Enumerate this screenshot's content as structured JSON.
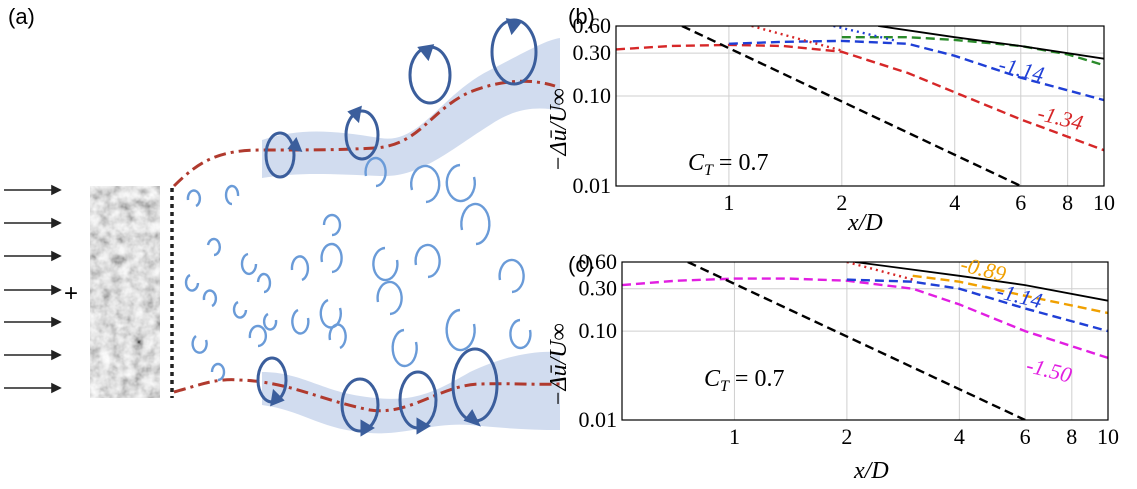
{
  "schematic": {
    "label": "(a)",
    "plus_sign": "+",
    "inflow_arrow_count": 7,
    "colors": {
      "wake_edge": "#b03a2e",
      "vortex_dark": "#3b5e9c",
      "vortex_light": "#6a9bd8",
      "shear_band": "#c9d6ec"
    }
  },
  "chart_data": [
    {
      "type": "line",
      "panel_label": "(b)",
      "xlabel": "x/D",
      "ylabel": "−Δū/U∞",
      "xscale": "log",
      "yscale": "log",
      "xlim": [
        0.5,
        10
      ],
      "ylim": [
        0.01,
        0.6
      ],
      "xticks": [
        1,
        2,
        4,
        6,
        8,
        10
      ],
      "yticks": [
        0.01,
        0.1,
        0.3,
        0.6
      ],
      "ytick_labels": [
        "0.01",
        "0.10",
        "0.30",
        "0.60"
      ],
      "xtick_labels": [
        "1",
        "2",
        "4",
        "6",
        "8",
        "10"
      ],
      "grid": true,
      "annotation": "C_T = 0.7",
      "series": [
        {
          "color": "#d62728",
          "style": "dashed",
          "x": [
            0.5,
            0.7,
            1.0,
            1.4,
            2.0,
            3.0,
            4.0,
            6.0,
            10.0
          ],
          "y": [
            0.33,
            0.36,
            0.37,
            0.36,
            0.31,
            0.18,
            0.11,
            0.055,
            0.025
          ]
        },
        {
          "color": "#1f3fd6",
          "style": "dashed",
          "x": [
            1.0,
            1.4,
            2.0,
            3.0,
            4.0,
            6.0,
            10.0
          ],
          "y": [
            0.38,
            0.4,
            0.41,
            0.38,
            0.28,
            0.16,
            0.09
          ]
        },
        {
          "color": "#2a8a2a",
          "style": "dashed",
          "x": [
            2.0,
            3.0,
            4.0,
            6.0,
            8.0,
            10.0
          ],
          "y": [
            0.45,
            0.45,
            0.42,
            0.36,
            0.29,
            0.22
          ]
        },
        {
          "color": "#000000",
          "style": "solid",
          "x": [
            2.5,
            4.0,
            6.0,
            10.0
          ],
          "y": [
            0.6,
            0.45,
            0.36,
            0.26
          ]
        },
        {
          "color": "#d62728",
          "style": "dotted",
          "x": [
            1.15,
            2.0
          ],
          "y": [
            0.6,
            0.32
          ]
        },
        {
          "color": "#1f3fd6",
          "style": "dotted",
          "x": [
            1.9,
            2.8
          ],
          "y": [
            0.6,
            0.41
          ]
        },
        {
          "color": "#000000",
          "style": "dashed",
          "x": [
            0.75,
            6.0
          ],
          "y": [
            0.6,
            0.01
          ]
        }
      ],
      "labels": [
        {
          "text": "-1.14",
          "color": "#1f3fd6",
          "x": 5.2,
          "y": 0.19
        },
        {
          "text": "-1.34",
          "color": "#d62728",
          "x": 6.6,
          "y": 0.055
        }
      ]
    },
    {
      "type": "line",
      "panel_label": "(c)",
      "xlabel": "x/D",
      "ylabel": "−Δū/U∞",
      "xscale": "log",
      "yscale": "log",
      "xlim": [
        0.5,
        10
      ],
      "ylim": [
        0.01,
        0.6
      ],
      "xticks": [
        1,
        2,
        4,
        6,
        8,
        10
      ],
      "yticks": [
        0.01,
        0.1,
        0.3,
        0.6
      ],
      "ytick_labels": [
        "0.01",
        "0.10",
        "0.30",
        "0.60"
      ],
      "xtick_labels": [
        "1",
        "2",
        "4",
        "6",
        "8",
        "10"
      ],
      "grid": true,
      "annotation": "C_T = 0.7",
      "series": [
        {
          "color": "#e11ee1",
          "style": "dashed",
          "x": [
            0.5,
            0.7,
            1.0,
            1.4,
            2.0,
            3.0,
            4.0,
            6.0,
            10.0
          ],
          "y": [
            0.33,
            0.37,
            0.39,
            0.39,
            0.37,
            0.3,
            0.2,
            0.1,
            0.05
          ]
        },
        {
          "color": "#1f3fd6",
          "style": "dashed",
          "x": [
            2.0,
            3.0,
            4.0,
            6.0,
            10.0
          ],
          "y": [
            0.38,
            0.36,
            0.3,
            0.18,
            0.1
          ]
        },
        {
          "color": "#f0a000",
          "style": "dashed",
          "x": [
            3.0,
            4.0,
            6.0,
            10.0
          ],
          "y": [
            0.42,
            0.36,
            0.25,
            0.16
          ]
        },
        {
          "color": "#000000",
          "style": "solid",
          "x": [
            2.1,
            4.0,
            6.0,
            10.0
          ],
          "y": [
            0.6,
            0.42,
            0.33,
            0.22
          ]
        },
        {
          "color": "#d62728",
          "style": "dotted",
          "x": [
            2.0,
            3.0
          ],
          "y": [
            0.6,
            0.38
          ]
        },
        {
          "color": "#000000",
          "style": "dashed",
          "x": [
            0.75,
            6.0
          ],
          "y": [
            0.6,
            0.01
          ]
        }
      ],
      "labels": [
        {
          "text": "-0.89",
          "color": "#f0a000",
          "x": 4.0,
          "y": 0.48
        },
        {
          "text": "-1.14",
          "color": "#1f3fd6",
          "x": 5.0,
          "y": 0.24
        },
        {
          "text": "-1.50",
          "color": "#e11ee1",
          "x": 6.0,
          "y": 0.035
        }
      ]
    }
  ]
}
